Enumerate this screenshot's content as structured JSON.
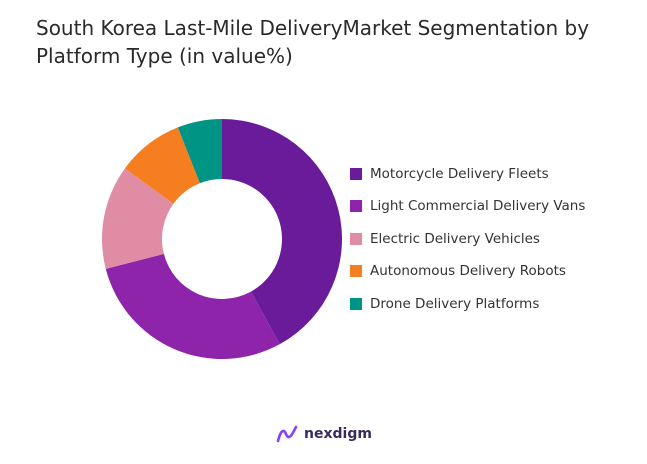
{
  "header": {
    "title_line1": "South Korea Last-Mile DeliveryMarket Segmentation by",
    "title_line2": "Platform Type (in value%)"
  },
  "chart_data": {
    "type": "pie",
    "donut": true,
    "title": "South Korea Last-Mile DeliveryMarket Segmentation by Platform Type (in value%)",
    "categories": [
      "Motorcycle Delivery Fleets",
      "Light Commercial Delivery Vans",
      "Electric Delivery Vehicles",
      "Autonomous Delivery Robots",
      "Drone Delivery Platforms"
    ],
    "values": [
      42,
      29,
      14,
      9,
      6
    ],
    "colors": [
      "#6a1b9a",
      "#8e24aa",
      "#e08ca4",
      "#f57f20",
      "#009485"
    ],
    "legend_position": "right"
  },
  "brand": {
    "name": "nexdigm",
    "logo_color": "#8a3ffc"
  }
}
